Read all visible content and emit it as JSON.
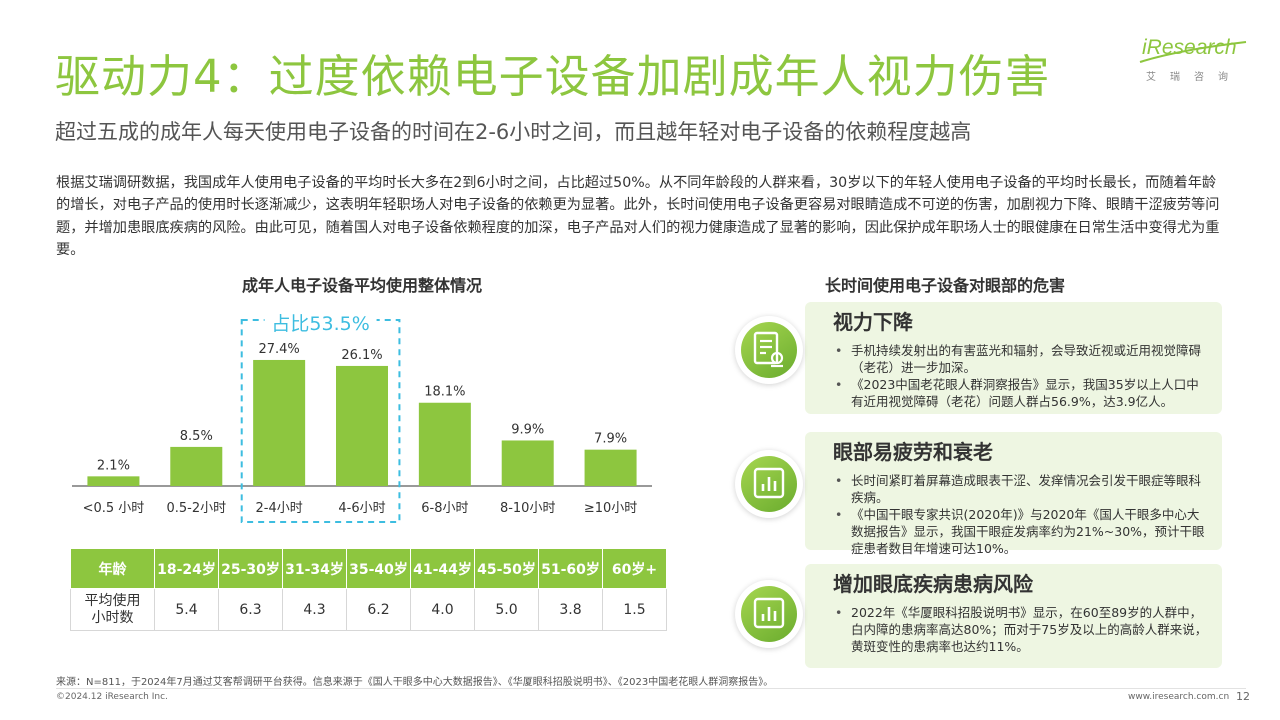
{
  "header": {
    "title": "驱动力4：过度依赖电子设备加剧成年人视力伤害",
    "subtitle": "超过五成的成年人每天使用电子设备的时间在2-6小时之间，而且越年轻对电子设备的依赖程度越高"
  },
  "logo": {
    "brand": "iResearch",
    "cn": "艾瑞咨询"
  },
  "intro": "根据艾瑞调研数据，我国成年人使用电子设备的平均时长大多在2到6小时之间，占比超过50%。从不同年龄段的人群来看，30岁以下的年轻人使用电子设备的平均时长最长，而随着年龄的增长，对电子产品的使用时长逐渐减少，这表明年轻职场人对电子设备的依赖更为显著。此外，长时间使用电子设备更容易对眼睛造成不可逆的伤害，加剧视力下降、眼睛干涩疲劳等问题，并增加患眼底疾病的风险。由此可见，随着国人对电子设备依赖程度的加深，电子产品对人们的视力健康造成了显著的影响，因此保护成年职场人士的眼健康在日常生活中变得尤为重要。",
  "chart_data": {
    "type": "bar",
    "title": "成年人电子设备平均使用整体情况",
    "categories": [
      "<0.5 小时",
      "0.5-2小时",
      "2-4小时",
      "4-6小时",
      "6-8小时",
      "8-10小时",
      "≥10小时"
    ],
    "values": [
      2.1,
      8.5,
      27.4,
      26.1,
      18.1,
      9.9,
      7.9
    ],
    "data_labels": [
      "2.1%",
      "8.5%",
      "27.4%",
      "26.1%",
      "18.1%",
      "9.9%",
      "7.9%"
    ],
    "unit": "%",
    "ylim": [
      0,
      30
    ],
    "color": "#8dc63f",
    "grid": false,
    "highlight": {
      "categories": [
        "2-4小时",
        "4-6小时"
      ],
      "label": "占比53.5%",
      "color": "#3dbde0"
    }
  },
  "age_table": {
    "header_label": "年龄",
    "ages": [
      "18-24岁",
      "25-30岁",
      "31-34岁",
      "35-40岁",
      "41-44岁",
      "45-50岁",
      "51-60岁",
      "60岁+"
    ],
    "row_label_line1": "平均使用",
    "row_label_line2": "小时数",
    "values": [
      "5.4",
      "6.3",
      "4.3",
      "6.2",
      "4.0",
      "5.0",
      "3.8",
      "1.5"
    ]
  },
  "harms": {
    "title": "长时间使用电子设备对眼部的危害",
    "cards": [
      {
        "title": "视力下降",
        "icon": "report-icon",
        "points": [
          "手机持续发射出的有害蓝光和辐射，会导致近视或近用视觉障碍（老花）进一步加深。",
          "《2023中国老花眼人群洞察报告》显示，我国35岁以上人口中有近用视觉障碍（老花）问题人群占56.9%，达3.9亿人。"
        ]
      },
      {
        "title": "眼部易疲劳和衰老",
        "icon": "bar-chart-icon",
        "points": [
          "长时间紧盯着屏幕造成眼表干涩、发痒情况会引发干眼症等眼科疾病。",
          "《中国干眼专家共识(2020年)》与2020年《国人干眼多中心大数据报告》显示，我国干眼症发病率约为21%~30%，预计干眼症患者数目年增速可达10%。"
        ]
      },
      {
        "title": "增加眼底疾病患病风险",
        "icon": "bar-chart-icon",
        "points": [
          "2022年《华厦眼科招股说明书》显示，在60至89岁的人群中，白内障的患病率高达80%；而对于75岁及以上的高龄人群来说，黄斑变性的患病率也达约11%。"
        ]
      }
    ]
  },
  "footer": {
    "source": "来源：N=811，于2024年7月通过艾客帮调研平台获得。信息来源于《国人干眼多中心大数据报告》、《华厦眼科招股说明书》、《2023中国老花眼人群洞察报告》。",
    "copyright": "©2024.12 iResearch Inc.",
    "website": "www.iresearch.com.cn",
    "page": "12"
  }
}
